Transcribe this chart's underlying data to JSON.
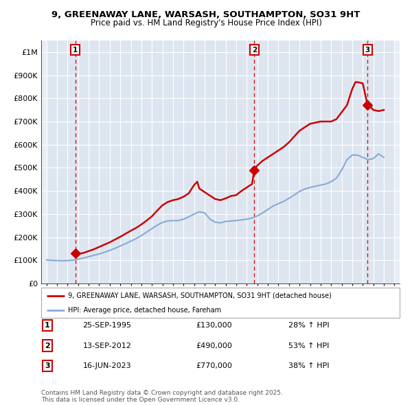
{
  "title": "9, GREENAWAY LANE, WARSASH, SOUTHAMPTON, SO31 9HT",
  "subtitle": "Price paid vs. HM Land Registry's House Price Index (HPI)",
  "xlim": [
    1992.5,
    2026.5
  ],
  "ylim": [
    0,
    1050000
  ],
  "yticks": [
    0,
    100000,
    200000,
    300000,
    400000,
    500000,
    600000,
    700000,
    800000,
    900000,
    1000000
  ],
  "ytick_labels": [
    "£0",
    "£100K",
    "£200K",
    "£300K",
    "£400K",
    "£500K",
    "£600K",
    "£700K",
    "£800K",
    "£900K",
    "£1M"
  ],
  "xticks": [
    1993,
    1994,
    1995,
    1996,
    1997,
    1998,
    1999,
    2000,
    2001,
    2002,
    2003,
    2004,
    2005,
    2006,
    2007,
    2008,
    2009,
    2010,
    2011,
    2012,
    2013,
    2014,
    2015,
    2016,
    2017,
    2018,
    2019,
    2020,
    2021,
    2022,
    2023,
    2024,
    2025,
    2026
  ],
  "sale_dates": [
    1995.73,
    2012.71,
    2023.46
  ],
  "sale_prices": [
    130000,
    490000,
    770000
  ],
  "sale_labels": [
    "1",
    "2",
    "3"
  ],
  "sale_date_strs": [
    "25-SEP-1995",
    "13-SEP-2012",
    "16-JUN-2023"
  ],
  "sale_price_strs": [
    "£130,000",
    "£490,000",
    "£770,000"
  ],
  "sale_hpi_strs": [
    "28% ↑ HPI",
    "53% ↑ HPI",
    "38% ↑ HPI"
  ],
  "property_line_color": "#cc0000",
  "hpi_line_color": "#88aad4",
  "legend_property": "9, GREENAWAY LANE, WARSASH, SOUTHAMPTON, SO31 9HT (detached house)",
  "legend_hpi": "HPI: Average price, detached house, Fareham",
  "footnote": "Contains HM Land Registry data © Crown copyright and database right 2025.\nThis data is licensed under the Open Government Licence v3.0.",
  "background_color": "#ffffff",
  "plot_bg_color": "#e8eef5",
  "grid_color": "#ffffff",
  "dashed_line_color": "#cc0000",
  "property_x": [
    1995.73,
    1996.0,
    1996.5,
    1997.0,
    1997.5,
    1998.0,
    1998.5,
    1999.0,
    1999.5,
    2000.0,
    2000.5,
    2001.0,
    2001.5,
    2002.0,
    2002.5,
    2003.0,
    2003.5,
    2004.0,
    2004.5,
    2005.0,
    2005.5,
    2006.0,
    2006.5,
    2007.0,
    2007.3,
    2007.5,
    2008.0,
    2008.5,
    2009.0,
    2009.5,
    2010.0,
    2010.5,
    2011.0,
    2011.5,
    2012.0,
    2012.5,
    2012.71,
    2013.0,
    2013.5,
    2014.0,
    2014.5,
    2015.0,
    2015.5,
    2016.0,
    2016.5,
    2017.0,
    2017.5,
    2018.0,
    2018.5,
    2019.0,
    2019.5,
    2020.0,
    2020.5,
    2021.0,
    2021.5,
    2022.0,
    2022.3,
    2022.5,
    2023.0,
    2023.46,
    2023.8,
    2024.0,
    2024.5,
    2025.0
  ],
  "property_y": [
    130000,
    128000,
    132000,
    140000,
    148000,
    158000,
    168000,
    178000,
    190000,
    202000,
    215000,
    228000,
    240000,
    255000,
    272000,
    290000,
    315000,
    338000,
    352000,
    360000,
    365000,
    375000,
    390000,
    425000,
    440000,
    410000,
    395000,
    380000,
    365000,
    360000,
    368000,
    378000,
    382000,
    400000,
    415000,
    430000,
    490000,
    510000,
    530000,
    545000,
    560000,
    575000,
    590000,
    610000,
    635000,
    660000,
    675000,
    690000,
    695000,
    700000,
    700000,
    700000,
    710000,
    740000,
    770000,
    840000,
    870000,
    870000,
    865000,
    770000,
    760000,
    750000,
    745000,
    750000
  ],
  "hpi_x": [
    1993.0,
    1993.5,
    1994.0,
    1994.5,
    1995.0,
    1995.5,
    1996.0,
    1996.5,
    1997.0,
    1997.5,
    1998.0,
    1998.5,
    1999.0,
    1999.5,
    2000.0,
    2000.5,
    2001.0,
    2001.5,
    2002.0,
    2002.5,
    2003.0,
    2003.5,
    2004.0,
    2004.5,
    2005.0,
    2005.5,
    2006.0,
    2006.5,
    2007.0,
    2007.5,
    2008.0,
    2008.3,
    2008.5,
    2009.0,
    2009.5,
    2010.0,
    2010.5,
    2011.0,
    2011.5,
    2012.0,
    2012.5,
    2013.0,
    2013.5,
    2014.0,
    2014.5,
    2015.0,
    2015.5,
    2016.0,
    2016.5,
    2017.0,
    2017.5,
    2018.0,
    2018.5,
    2019.0,
    2019.5,
    2020.0,
    2020.5,
    2021.0,
    2021.5,
    2022.0,
    2022.5,
    2023.0,
    2023.5,
    2024.0,
    2024.5,
    2025.0
  ],
  "hpi_y": [
    102000,
    100000,
    99000,
    98000,
    99000,
    101000,
    105000,
    110000,
    116000,
    122000,
    128000,
    135000,
    143000,
    152000,
    162000,
    172000,
    183000,
    194000,
    207000,
    222000,
    237000,
    252000,
    264000,
    270000,
    272000,
    272000,
    278000,
    288000,
    300000,
    310000,
    305000,
    290000,
    278000,
    265000,
    262000,
    268000,
    270000,
    272000,
    275000,
    278000,
    283000,
    292000,
    305000,
    320000,
    335000,
    345000,
    355000,
    368000,
    382000,
    398000,
    408000,
    415000,
    420000,
    425000,
    430000,
    440000,
    455000,
    490000,
    535000,
    555000,
    555000,
    545000,
    535000,
    540000,
    560000,
    545000
  ]
}
